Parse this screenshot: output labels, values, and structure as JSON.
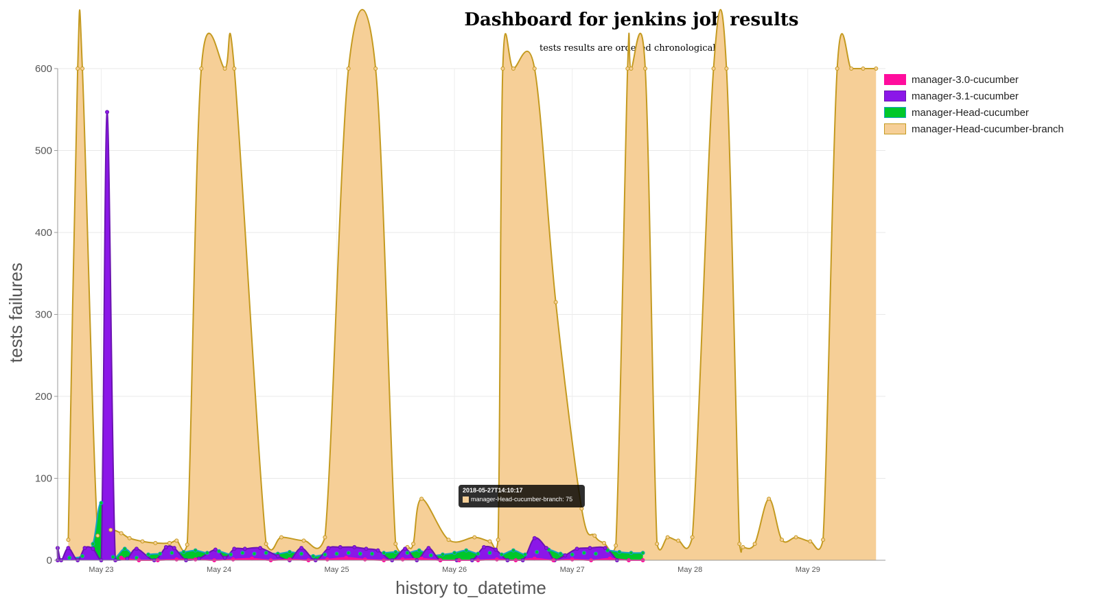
{
  "title": "Dashboard for jenkins job results",
  "subtitle": "tests results are ordered chronologically",
  "tooltip": {
    "title": "2018-05-27T14:10:17",
    "series": "manager-Head-cucumber-branch",
    "value": 75
  },
  "chart_data": {
    "type": "area",
    "xlabel": "history to_datetime",
    "ylabel": "tests failures",
    "ylim": [
      0,
      600
    ],
    "xlim": [
      22.63,
      29.66
    ],
    "yticks": [
      0,
      100,
      200,
      300,
      400,
      500,
      600
    ],
    "xticks": [
      {
        "label": "May 23",
        "x": 23.0
      },
      {
        "label": "May 24",
        "x": 24.0
      },
      {
        "label": "May 25",
        "x": 25.0
      },
      {
        "label": "May 26",
        "x": 26.0
      },
      {
        "label": "May 27",
        "x": 27.0
      },
      {
        "label": "May 28",
        "x": 28.0
      },
      {
        "label": "May 29",
        "x": 29.0
      }
    ],
    "legend_position": "right",
    "series": [
      {
        "name": "manager-Head-cucumber-branch",
        "color": "#f6cf97",
        "stroke": "#c49a20",
        "x": [
          22.72,
          22.8,
          22.84,
          22.97,
          23.08,
          23.17,
          23.24,
          23.35,
          23.46,
          23.58,
          23.64,
          23.73,
          23.85,
          24.05,
          24.13,
          24.4,
          24.53,
          24.72,
          24.9,
          25.1,
          25.33,
          25.5,
          25.6,
          25.65,
          25.72,
          25.95,
          26.17,
          26.3,
          26.37,
          26.41,
          26.5,
          26.68,
          26.86,
          27.08,
          27.19,
          27.27,
          27.37,
          27.47,
          27.5,
          27.62,
          27.72,
          27.81,
          27.9,
          28.02,
          28.2,
          28.31,
          28.42,
          28.45,
          28.55,
          28.67,
          28.78,
          28.9,
          29.02,
          29.13,
          29.25,
          29.37,
          29.47,
          29.58
        ],
        "y": [
          25,
          600,
          600,
          30,
          37,
          33,
          27,
          23,
          21,
          21,
          24,
          19,
          600,
          600,
          600,
          20,
          28,
          24,
          28,
          600,
          600,
          20,
          16,
          20,
          75,
          25,
          28,
          23,
          25,
          600,
          600,
          600,
          315,
          63,
          30,
          21,
          18,
          600,
          600,
          600,
          20,
          28,
          24,
          28,
          600,
          600,
          20,
          16,
          20,
          75,
          25,
          28,
          23,
          25,
          600,
          600,
          600,
          600
        ]
      },
      {
        "name": "manager-Head-cucumber",
        "color": "#00c72a",
        "stroke": "#16a0c8",
        "x": [
          22.73,
          22.84,
          22.93,
          23.0,
          23.1,
          23.2,
          23.3,
          23.4,
          23.5,
          23.6,
          23.7,
          23.8,
          23.9,
          24.0,
          24.1,
          24.2,
          24.3,
          24.4,
          24.5,
          24.6,
          24.7,
          24.8,
          24.9,
          25.0,
          25.1,
          25.2,
          25.3,
          25.4,
          25.5,
          25.6,
          25.7,
          25.8,
          25.9,
          26.0,
          26.1,
          26.2,
          26.3,
          26.4,
          26.5,
          26.6,
          26.7,
          26.8,
          26.9,
          27.0,
          27.1,
          27.2,
          27.3,
          27.4,
          27.5,
          27.6
        ],
        "y": [
          3,
          5,
          20,
          70,
          4,
          14,
          3,
          7,
          8,
          9,
          10,
          12,
          9,
          11,
          7,
          9,
          8,
          9,
          8,
          10,
          8,
          5,
          7,
          8,
          9,
          8,
          8,
          9,
          10,
          9,
          12,
          6,
          7,
          9,
          12,
          8,
          9,
          7,
          12,
          7,
          10,
          13,
          8,
          7,
          9,
          8,
          12,
          10,
          9,
          9
        ]
      },
      {
        "name": "manager-3.1-cucumber",
        "color": "#8b17e8",
        "stroke": "#6a14b0",
        "x": [
          22.55,
          22.6,
          22.66,
          22.72,
          22.8,
          22.86,
          22.93,
          23.0,
          23.05,
          23.12,
          23.22,
          23.3,
          23.45,
          23.55,
          23.62,
          23.72,
          23.83,
          23.97,
          24.05,
          24.13,
          24.22,
          24.35,
          24.5,
          24.6,
          24.7,
          24.82,
          24.93,
          25.03,
          25.15,
          25.25,
          25.35,
          25.47,
          25.58,
          25.68,
          25.78,
          25.88,
          26.02,
          26.15,
          26.25,
          26.35,
          26.45,
          26.58,
          26.68,
          26.78,
          26.85,
          26.94,
          27.04,
          27.15,
          27.28,
          27.38
        ],
        "y": [
          0,
          15,
          0,
          15,
          0,
          15,
          14,
          0,
          547,
          0,
          2,
          14,
          0,
          16,
          15,
          0,
          2,
          13,
          3,
          14,
          14,
          15,
          5,
          0,
          15,
          0,
          15,
          16,
          16,
          14,
          12,
          0,
          14,
          0,
          15,
          0,
          0,
          0,
          16,
          13,
          0,
          0,
          27,
          15,
          0,
          6,
          14,
          15,
          15,
          0
        ]
      },
      {
        "name": "manager-3.0-cucumber",
        "color": "#ff0d9d",
        "stroke": "#ff0d9d",
        "x": [
          23.17,
          23.32,
          23.48,
          23.64,
          23.8,
          23.96,
          24.12,
          24.28,
          24.44,
          24.6,
          24.76,
          24.92,
          25.08,
          25.24,
          25.4,
          25.56,
          25.72,
          25.88,
          26.04,
          26.2,
          26.36,
          26.52,
          26.68,
          26.84,
          27.0,
          27.16,
          27.32,
          27.48,
          27.6
        ],
        "y": [
          3,
          0,
          0,
          1,
          1,
          0,
          1,
          2,
          0,
          1,
          0,
          1,
          3,
          1,
          0,
          1,
          2,
          0,
          0,
          0,
          1,
          0,
          2,
          0,
          1,
          0,
          2,
          0,
          0
        ]
      }
    ]
  }
}
